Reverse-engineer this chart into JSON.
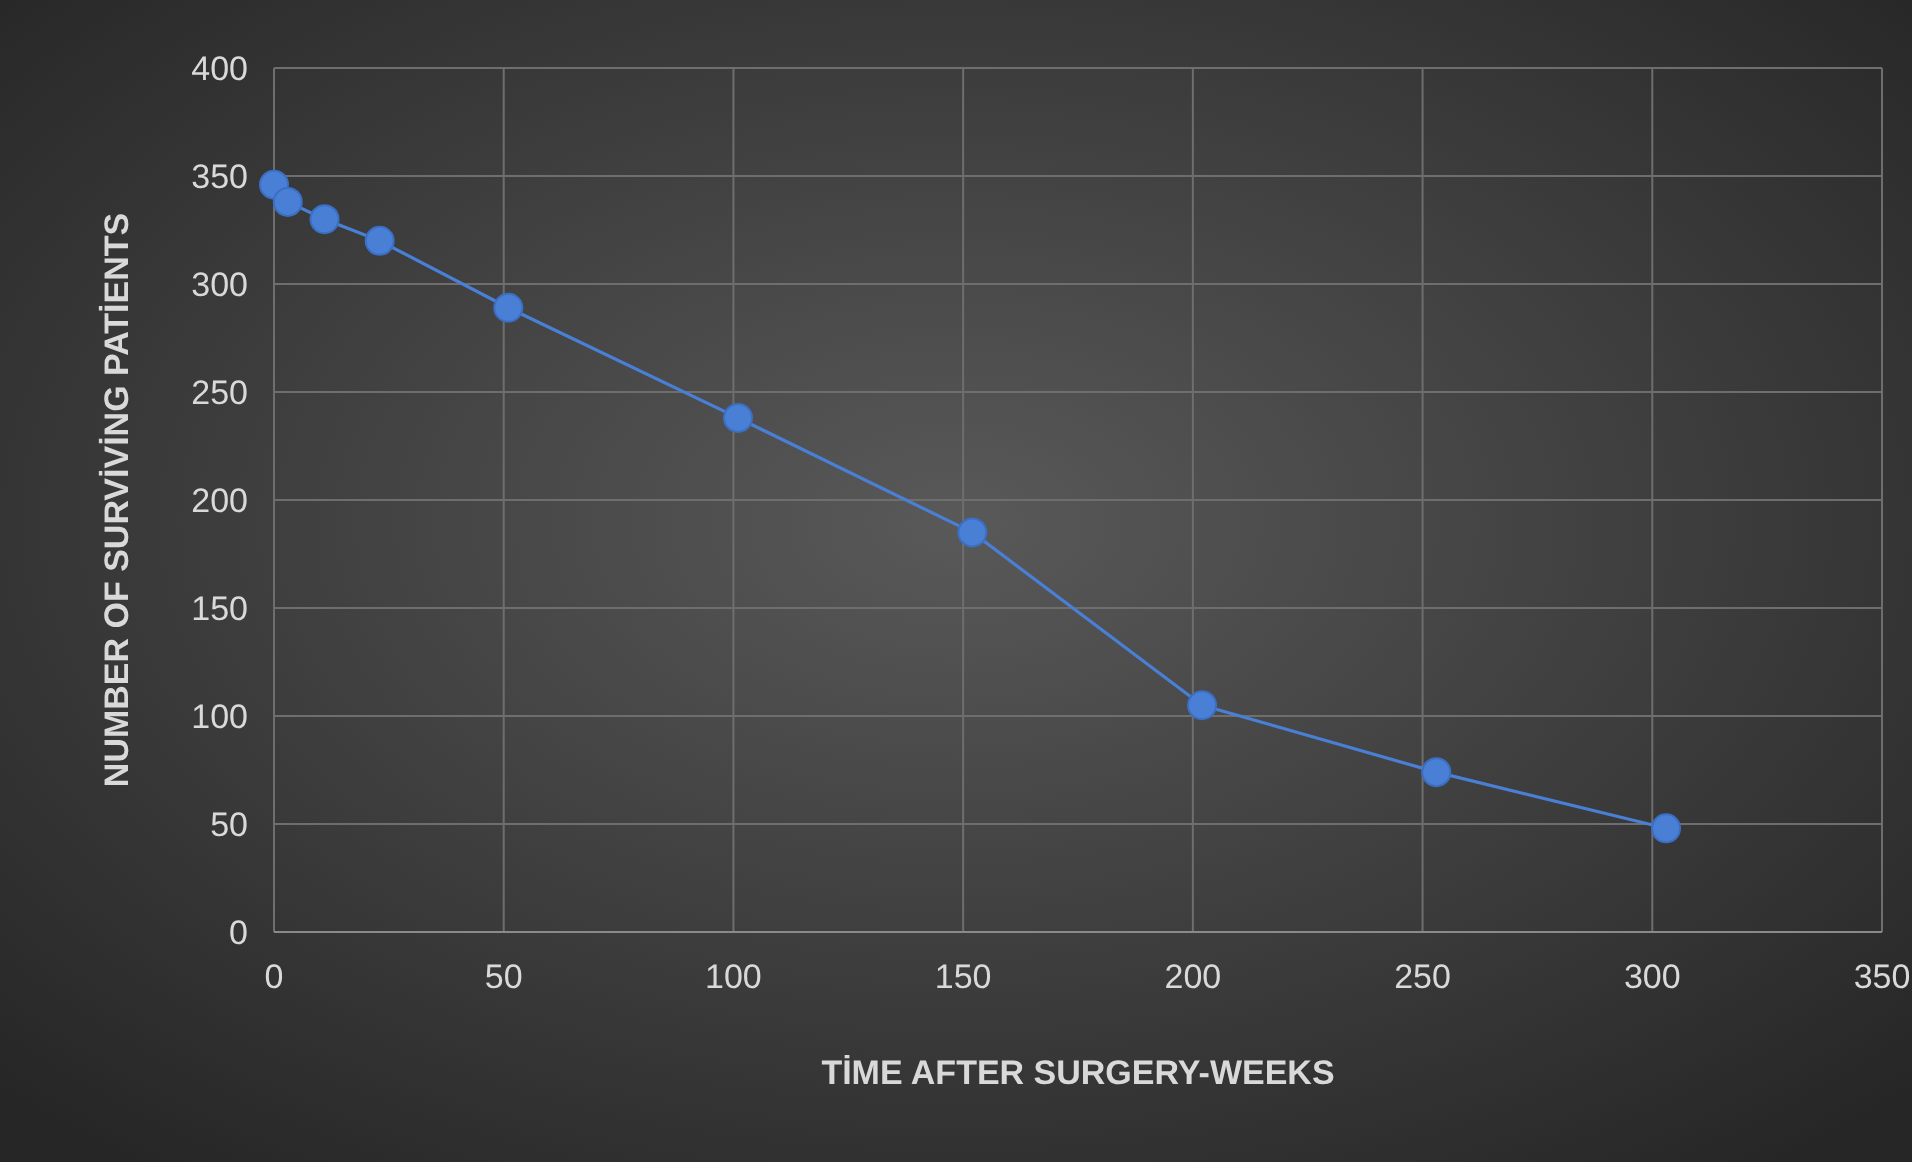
{
  "chart_data": {
    "type": "line",
    "xlabel": "TİME AFTER SURGERY-WEEKS",
    "ylabel": "NUMBER OF SURVİVİNG PATİENTS",
    "x": [
      0,
      3,
      11,
      23,
      51,
      101,
      152,
      202,
      253,
      303
    ],
    "series": [
      {
        "color": "#4a7fd6",
        "values": [
          346,
          338,
          330,
          320,
          289,
          238,
          185,
          105,
          74,
          48
        ]
      }
    ],
    "xlim": [
      0,
      350
    ],
    "xticks": [
      0,
      50,
      100,
      150,
      200,
      250,
      300,
      350
    ],
    "ylim": [
      0,
      400
    ],
    "yticks": [
      0,
      50,
      100,
      150,
      200,
      250,
      300,
      350,
      400
    ],
    "grid": true,
    "marker": "circle",
    "line_style": "solid"
  }
}
